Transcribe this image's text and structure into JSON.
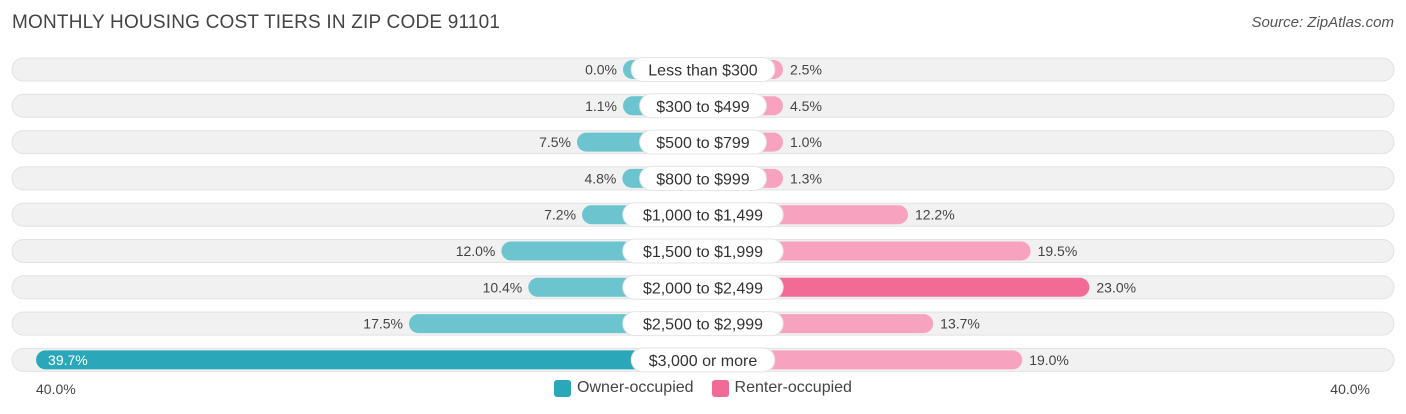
{
  "header": {
    "title": "MONTHLY HOUSING COST TIERS IN ZIP CODE 91101",
    "source": "Source: ZipAtlas.com"
  },
  "colors": {
    "owner": "#6cc4cf",
    "owner_strong": "#2aa7b8",
    "renter": "#f7a3bf",
    "renter_strong": "#f26a96",
    "row_bg": "#f1f1f1",
    "row_border": "#e2e2e2"
  },
  "legend": {
    "owner_label": "Owner-occupied",
    "renter_label": "Renter-occupied"
  },
  "axis": {
    "left_label": "40.0%",
    "right_label": "40.0%"
  },
  "chart_data": {
    "type": "bar",
    "orientation": "horizontal-diverging",
    "title": "MONTHLY HOUSING COST TIERS IN ZIP CODE 91101",
    "categories": [
      "Less than $300",
      "$300 to $499",
      "$500 to $799",
      "$800 to $999",
      "$1,000 to $1,499",
      "$1,500 to $1,999",
      "$2,000 to $2,499",
      "$2,500 to $2,999",
      "$3,000 or more"
    ],
    "series": [
      {
        "name": "Owner-occupied",
        "values": [
          0.0,
          1.1,
          7.5,
          4.8,
          7.2,
          12.0,
          10.4,
          17.5,
          39.7
        ],
        "labels": [
          "0.0%",
          "1.1%",
          "7.5%",
          "4.8%",
          "7.2%",
          "12.0%",
          "10.4%",
          "17.5%",
          "39.7%"
        ]
      },
      {
        "name": "Renter-occupied",
        "values": [
          2.5,
          4.5,
          1.0,
          1.3,
          12.2,
          19.5,
          23.0,
          13.7,
          19.0
        ],
        "labels": [
          "2.5%",
          "4.5%",
          "1.0%",
          "1.3%",
          "12.2%",
          "19.5%",
          "23.0%",
          "13.7%",
          "19.0%"
        ]
      }
    ],
    "xlim": [
      -40,
      40
    ],
    "legend_position": "bottom-center"
  }
}
